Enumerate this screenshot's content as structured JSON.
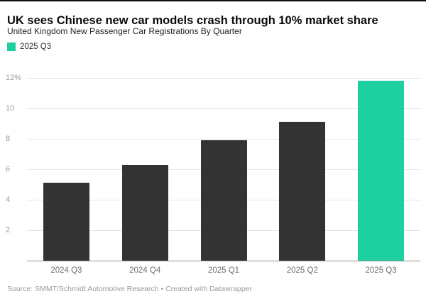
{
  "header": {
    "title": "UK sees Chinese new car models crash through 10% market share",
    "subtitle": "United Kingdom New Passenger Car Registrations By Quarter"
  },
  "legend": {
    "label": "2025 Q3",
    "color": "#1ecf9f"
  },
  "footer": {
    "source": "Source: SMMT/Schmidt Automotive Research • Created with Datawrapper"
  },
  "chart_data": {
    "type": "bar",
    "title": "UK sees Chinese new car models crash through 10% market share",
    "subtitle": "United Kingdom New Passenger Car Registrations By Quarter",
    "categories": [
      "2024 Q3",
      "2024 Q4",
      "2025 Q1",
      "2025 Q2",
      "2025 Q3"
    ],
    "values": [
      5.1,
      6.3,
      7.9,
      9.1,
      11.8
    ],
    "xlabel": "",
    "ylabel": "",
    "ylim": [
      0,
      12
    ],
    "yticks": [
      2,
      4,
      6,
      8,
      10,
      12
    ],
    "ytick_labels": [
      "2",
      "4",
      "6",
      "8",
      "10",
      "12%"
    ],
    "grid": true,
    "legend_position": "top-left",
    "legend_entries": [
      "2025 Q3"
    ],
    "bar_color_default": "#333333",
    "bar_color_highlight": "#1ecf9f",
    "bar_colors": [
      "#333333",
      "#333333",
      "#333333",
      "#333333",
      "#1ecf9f"
    ]
  }
}
